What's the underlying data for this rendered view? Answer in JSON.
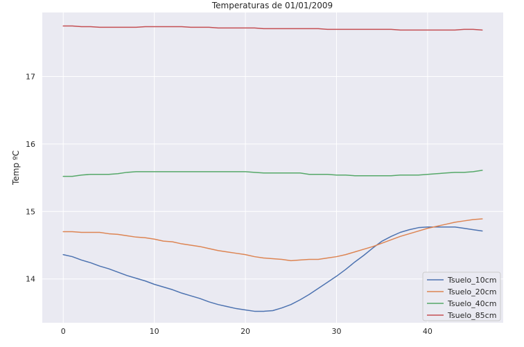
{
  "chart_data": {
    "type": "line",
    "title": "Temperaturas de 01/01/2009",
    "xlabel": "",
    "ylabel": "Temp ºC",
    "xlim": [
      -2.3,
      48.3
    ],
    "ylim": [
      13.35,
      17.95
    ],
    "x_ticks": [
      0,
      10,
      20,
      30,
      40
    ],
    "y_ticks": [
      14,
      15,
      16,
      17
    ],
    "grid": true,
    "legend_position": "lower-right",
    "x": [
      0,
      1,
      2,
      3,
      4,
      5,
      6,
      7,
      8,
      9,
      10,
      11,
      12,
      13,
      14,
      15,
      16,
      17,
      18,
      19,
      20,
      21,
      22,
      23,
      24,
      25,
      26,
      27,
      28,
      29,
      30,
      31,
      32,
      33,
      34,
      35,
      36,
      37,
      38,
      39,
      40,
      41,
      42,
      43,
      44,
      45,
      46
    ],
    "series": [
      {
        "name": "Tsuelo_10cm",
        "color": "#4c72b0",
        "values": [
          14.36,
          14.33,
          14.28,
          14.24,
          14.19,
          14.15,
          14.1,
          14.05,
          14.01,
          13.97,
          13.92,
          13.88,
          13.84,
          13.79,
          13.75,
          13.71,
          13.66,
          13.62,
          13.59,
          13.56,
          13.54,
          13.52,
          13.52,
          13.53,
          13.57,
          13.62,
          13.69,
          13.77,
          13.86,
          13.95,
          14.04,
          14.14,
          14.25,
          14.35,
          14.46,
          14.56,
          14.63,
          14.69,
          14.73,
          14.76,
          14.77,
          14.77,
          14.77,
          14.77,
          14.75,
          14.73,
          14.71
        ]
      },
      {
        "name": "Tsuelo_20cm",
        "color": "#dd8452",
        "values": [
          14.7,
          14.7,
          14.69,
          14.69,
          14.69,
          14.67,
          14.66,
          14.64,
          14.62,
          14.61,
          14.59,
          14.56,
          14.55,
          14.52,
          14.5,
          14.48,
          14.45,
          14.42,
          14.4,
          14.38,
          14.36,
          14.33,
          14.31,
          14.3,
          14.29,
          14.27,
          14.28,
          14.29,
          14.29,
          14.31,
          14.33,
          14.36,
          14.4,
          14.44,
          14.48,
          14.53,
          14.58,
          14.63,
          14.67,
          14.71,
          14.75,
          14.78,
          14.81,
          14.84,
          14.86,
          14.88,
          14.89
        ]
      },
      {
        "name": "Tsuelo_40cm",
        "color": "#55a868",
        "values": [
          15.52,
          15.52,
          15.54,
          15.55,
          15.55,
          15.55,
          15.56,
          15.58,
          15.59,
          15.59,
          15.59,
          15.59,
          15.59,
          15.59,
          15.59,
          15.59,
          15.59,
          15.59,
          15.59,
          15.59,
          15.59,
          15.58,
          15.57,
          15.57,
          15.57,
          15.57,
          15.57,
          15.55,
          15.55,
          15.55,
          15.54,
          15.54,
          15.53,
          15.53,
          15.53,
          15.53,
          15.53,
          15.54,
          15.54,
          15.54,
          15.55,
          15.56,
          15.57,
          15.58,
          15.58,
          15.59,
          15.61
        ]
      },
      {
        "name": "Tsuelo_85cm",
        "color": "#c44e52",
        "values": [
          17.75,
          17.75,
          17.74,
          17.74,
          17.73,
          17.73,
          17.73,
          17.73,
          17.73,
          17.74,
          17.74,
          17.74,
          17.74,
          17.74,
          17.73,
          17.73,
          17.73,
          17.72,
          17.72,
          17.72,
          17.72,
          17.72,
          17.71,
          17.71,
          17.71,
          17.71,
          17.71,
          17.71,
          17.71,
          17.7,
          17.7,
          17.7,
          17.7,
          17.7,
          17.7,
          17.7,
          17.7,
          17.69,
          17.69,
          17.69,
          17.69,
          17.69,
          17.69,
          17.69,
          17.7,
          17.7,
          17.69
        ]
      }
    ]
  }
}
